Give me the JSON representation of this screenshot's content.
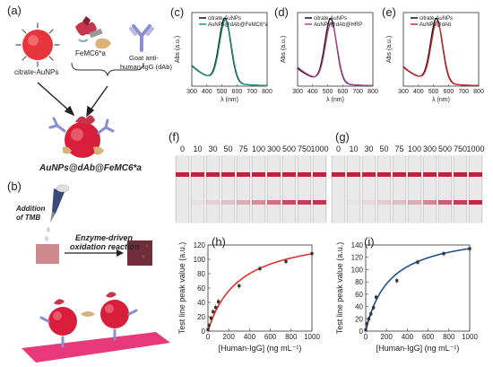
{
  "panels": {
    "a": {
      "label": "(a)",
      "gold": "citrate-AuNPs",
      "fem": "FeMC6*a",
      "ab1": "Goat anti-",
      "ab2": "human-IgG (dAb)",
      "product": "AuNPs@dAb@FeMC6*a"
    },
    "b": {
      "label": "(b)",
      "tmb1": "Addition",
      "tmb2": "of TMB",
      "enz1": "Enzyme-driven",
      "enz2": "oxidation reaction"
    },
    "c": {
      "label": "(c)"
    },
    "d": {
      "label": "(d)"
    },
    "e": {
      "label": "(e)"
    },
    "f": {
      "label": "(f)"
    },
    "g": {
      "label": "(g)"
    },
    "h": {
      "label": "(h)"
    },
    "i": {
      "label": "(i)"
    }
  },
  "strips": {
    "concentrations": [
      "0",
      "10",
      "30",
      "50",
      "75",
      "100",
      "300",
      "500",
      "750",
      "1000"
    ],
    "test_line_intensity_f": [
      0.0,
      0.05,
      0.12,
      0.2,
      0.3,
      0.45,
      0.6,
      0.8,
      0.85,
      0.9
    ],
    "test_line_intensity_g": [
      0.0,
      0.03,
      0.08,
      0.15,
      0.22,
      0.3,
      0.5,
      0.7,
      0.85,
      0.95
    ],
    "control_color": "#c2203f",
    "test_color": "#c2203f"
  },
  "chart_data": [
    {
      "panel": "c",
      "type": "line",
      "xlabel": "λ (nm)",
      "ylabel": "Abs (a.u.)",
      "xlim": [
        300,
        800
      ],
      "xticks": [
        "300",
        "400",
        "500",
        "600",
        "700",
        "800"
      ],
      "series": [
        {
          "name": "citrate-AuNPs",
          "color": "#111111",
          "peak": 520,
          "height": 1.0,
          "base": 0.32
        },
        {
          "name": "AuNPs@dAb@FeMC6*a",
          "color": "#1a9a84",
          "peak": 524,
          "height": 0.97,
          "base": 0.33
        }
      ]
    },
    {
      "panel": "d",
      "type": "line",
      "xlabel": "λ (nm)",
      "ylabel": "Abs (a.u.)",
      "xlim": [
        300,
        800
      ],
      "xticks": [
        "300",
        "400",
        "500",
        "600",
        "700",
        "800"
      ],
      "series": [
        {
          "name": "citrate-AuNPs",
          "color": "#111111",
          "peak": 520,
          "height": 1.0,
          "base": 0.28
        },
        {
          "name": "AuNPs@dAb@HRP",
          "color": "#b0409a",
          "peak": 524,
          "height": 0.93,
          "base": 0.3
        }
      ]
    },
    {
      "panel": "e",
      "type": "line",
      "xlabel": "λ (nm)",
      "ylabel": "Abs (a.u.)",
      "xlim": [
        300,
        800
      ],
      "xticks": [
        "300",
        "400",
        "500",
        "600",
        "700",
        "800"
      ],
      "series": [
        {
          "name": "citrate-AuNPs",
          "color": "#111111",
          "peak": 520,
          "height": 1.0,
          "base": 0.3
        },
        {
          "name": "AuNPs@dAb",
          "color": "#d42a2a",
          "peak": 524,
          "height": 0.95,
          "base": 0.31
        }
      ]
    },
    {
      "panel": "h",
      "type": "scatter",
      "xlabel": "[Human-IgG] (ng mL⁻¹)",
      "ylabel": "Test line peak value (a.u.)",
      "xlim": [
        0,
        1000
      ],
      "ylim": [
        0,
        120
      ],
      "xticks": [
        0,
        200,
        400,
        600,
        800,
        1000
      ],
      "yticks": [
        0,
        20,
        40,
        60,
        80,
        100,
        120
      ],
      "color": "#e83030",
      "x": [
        0,
        10,
        30,
        50,
        75,
        100,
        300,
        500,
        750,
        1000
      ],
      "y": [
        2,
        8,
        18,
        27,
        33,
        41,
        63,
        87,
        97,
        108
      ],
      "fit": {
        "vmax": 140,
        "k": 300
      }
    },
    {
      "panel": "i",
      "type": "scatter",
      "xlabel": "[Human-IgG] (ng mL⁻¹)",
      "ylabel": "Test line peak value (a.u.)",
      "xlim": [
        0,
        1000
      ],
      "ylim": [
        0,
        140
      ],
      "xticks": [
        0,
        200,
        400,
        600,
        800,
        1000
      ],
      "yticks": [
        0,
        20,
        40,
        60,
        80,
        100,
        120,
        140
      ],
      "color": "#1f4e9a",
      "x": [
        0,
        10,
        30,
        50,
        75,
        100,
        300,
        500,
        750,
        1000
      ],
      "y": [
        2,
        12,
        20,
        28,
        38,
        55,
        82,
        112,
        126,
        134
      ],
      "fit": {
        "vmax": 165,
        "k": 230
      }
    }
  ]
}
